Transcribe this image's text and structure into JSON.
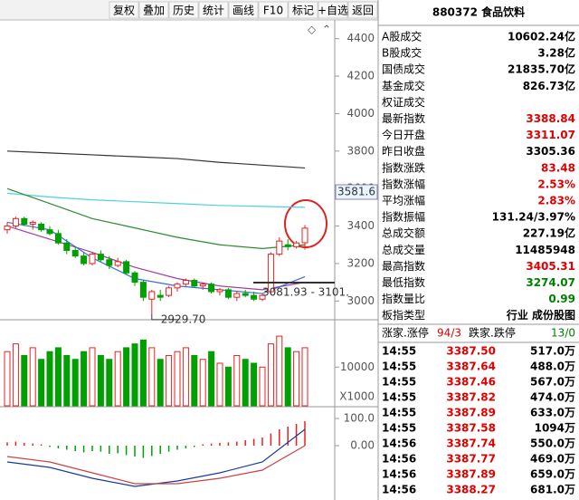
{
  "toolbar": {
    "buttons": [
      "复权",
      "叠加",
      "历史",
      "统计",
      "画线",
      "F10",
      "标记",
      "+自选",
      "返回"
    ]
  },
  "chart_data": [
    {
      "type": "candlestick",
      "up_color": "#e82020",
      "down_color": "#00a000",
      "open": [
        3380,
        3400,
        3440,
        3410,
        3410,
        3380,
        3360,
        3310,
        3270,
        3240,
        3200,
        3250,
        3220,
        3190,
        3210,
        3150,
        3100,
        3010,
        3030,
        3030,
        3070,
        3090,
        3110,
        3080,
        3090,
        3050,
        3060,
        3020,
        3040,
        3030,
        3010,
        3050,
        3250,
        3300,
        3290,
        3311.07
      ],
      "high": [
        3420,
        3450,
        3450,
        3430,
        3420,
        3400,
        3380,
        3330,
        3290,
        3260,
        3260,
        3270,
        3240,
        3230,
        3220,
        3160,
        3110,
        3060,
        3060,
        3080,
        3100,
        3120,
        3120,
        3100,
        3100,
        3070,
        3070,
        3050,
        3060,
        3050,
        3040,
        3260,
        3340,
        3330,
        3320,
        3405.31
      ],
      "low": [
        3360,
        3390,
        3400,
        3380,
        3370,
        3350,
        3300,
        3250,
        3230,
        3190,
        3190,
        3210,
        3170,
        3180,
        3140,
        3080,
        3000,
        2929.7,
        3000,
        3020,
        3050,
        3080,
        3070,
        3060,
        3040,
        3030,
        3010,
        3000,
        3020,
        3000,
        3000,
        3040,
        3240,
        3270,
        3280,
        3274.07
      ],
      "close": [
        3400,
        3440,
        3410,
        3420,
        3380,
        3360,
        3310,
        3270,
        3240,
        3200,
        3250,
        3220,
        3190,
        3210,
        3150,
        3100,
        3020,
        3050,
        3020,
        3070,
        3090,
        3110,
        3080,
        3090,
        3050,
        3060,
        3020,
        3040,
        3030,
        3010,
        3030,
        3250,
        3320,
        3290,
        3310,
        3388.84
      ],
      "line_x": [
        0,
        5,
        10,
        15,
        20,
        25,
        30,
        35
      ],
      "lines": [
        {
          "color": "#333333",
          "values": [
            3800,
            3790,
            3780,
            3770,
            3760,
            3740,
            3725,
            3710
          ]
        },
        {
          "color": "#4fd0e0",
          "values": [
            3575,
            3555,
            3540,
            3530,
            3520,
            3510,
            3505,
            3500
          ]
        },
        {
          "color": "#2e8b2e",
          "values": [
            3600,
            3520,
            3440,
            3390,
            3340,
            3300,
            3280,
            3300
          ]
        },
        {
          "color": "#a040a0",
          "values": [
            3400,
            3330,
            3260,
            3180,
            3120,
            3080,
            3060,
            3100
          ]
        },
        {
          "color": "#3a6fd8",
          "values": [
            3420,
            3380,
            3230,
            3120,
            3080,
            3060,
            3040,
            3130
          ]
        }
      ],
      "ylim": [
        2900,
        4500
      ],
      "yticks": [
        3000,
        3200,
        3400,
        3600,
        3800,
        4000,
        4200,
        4400
      ],
      "cursor_value": 3581.6,
      "low_label": "2929.70",
      "range_label": "3081.93 - 3101."
    },
    {
      "type": "bar",
      "unit_label": "X1000",
      "values": [
        14000,
        16000,
        13000,
        15000,
        12000,
        14000,
        15000,
        13000,
        12000,
        14000,
        15000,
        13000,
        12000,
        14000,
        15000,
        16000,
        17000,
        15000,
        12000,
        13000,
        14000,
        15000,
        13000,
        12000,
        14000,
        11000,
        10000,
        13000,
        12000,
        11000,
        10000,
        16000,
        18000,
        15000,
        14000,
        15000
      ],
      "ylim": [
        0,
        22000
      ],
      "yticks": [
        10000
      ]
    },
    {
      "type": "bar",
      "pos_color": "#e82020",
      "neg_color": "#00a000",
      "values": [
        12,
        15,
        10,
        8,
        5,
        -5,
        -10,
        -15,
        -20,
        -25,
        -20,
        -22,
        -30,
        -28,
        -35,
        -40,
        -45,
        -38,
        -30,
        -22,
        -15,
        -10,
        -5,
        5,
        8,
        10,
        12,
        15,
        20,
        25,
        30,
        45,
        60,
        70,
        80,
        90
      ],
      "line_x": [
        0,
        5,
        10,
        15,
        20,
        25,
        30,
        35
      ],
      "lines": [
        {
          "color": "#1a3a9a",
          "values": [
            -60,
            -80,
            -120,
            -150,
            -130,
            -100,
            -60,
            60
          ]
        },
        {
          "color": "#d04040",
          "values": [
            -40,
            -60,
            -100,
            -140,
            -140,
            -120,
            -90,
            0
          ]
        }
      ],
      "ylim": [
        -200,
        140
      ],
      "yticks": [
        {
          "value": 100,
          "label": "100.0"
        },
        {
          "value": 0,
          "label": "0.00"
        }
      ]
    }
  ],
  "quote": {
    "header": "880372 食品饮料",
    "rows": [
      [
        "A股成交",
        "10602.24亿",
        "#000"
      ],
      [
        "B股成交",
        "3.28亿",
        "#000"
      ],
      [
        "国债成交",
        "21835.70亿",
        "#000"
      ],
      [
        "基金成交",
        "826.73亿",
        "#000"
      ],
      [
        "权证成交",
        null,
        "#000"
      ],
      [
        "最新指数",
        "3388.84",
        "#e00000"
      ],
      [
        "今日开盘",
        "3311.07",
        "#e00000"
      ],
      [
        "昨日收盘",
        "3305.36",
        "#000"
      ],
      [
        "指数涨跌",
        "83.48",
        "#e00000"
      ],
      [
        "指数涨幅",
        "2.53%",
        "#e00000"
      ],
      [
        "平均涨幅",
        "2.83%",
        "#e00000"
      ],
      [
        "指数振幅",
        "131.24/3.97%",
        "#000"
      ],
      [
        "总成交额",
        "227.19亿",
        "#000"
      ],
      [
        "总成交量",
        "11485948",
        "#000"
      ],
      [
        "最高指数",
        "3405.31",
        "#e00000"
      ],
      [
        "最低指数",
        "3274.07",
        "#008000"
      ],
      [
        "指数量比",
        "0.99",
        "#008000"
      ],
      [
        "板指类型",
        "行业 成份股图",
        "#000"
      ]
    ],
    "breadth": [
      "涨家.涨停",
      "94/3",
      "跌家.跌停",
      "13/0"
    ],
    "ticks": [
      [
        "14:55",
        "3387.50",
        "517.0万"
      ],
      [
        "14:55",
        "3387.64",
        "488.0万"
      ],
      [
        "14:55",
        "3387.46",
        "567.0万"
      ],
      [
        "14:55",
        "3387.82",
        "474.0万"
      ],
      [
        "14:55",
        "3387.89",
        "633.0万"
      ],
      [
        "14:55",
        "3387.58",
        "1094万"
      ],
      [
        "14:56",
        "3387.74",
        "550.0万"
      ],
      [
        "14:56",
        "3387.77",
        "469.0万"
      ],
      [
        "14:56",
        "3387.89",
        "659.0万"
      ],
      [
        "14:56",
        "3388.27",
        "681.0万"
      ]
    ]
  }
}
